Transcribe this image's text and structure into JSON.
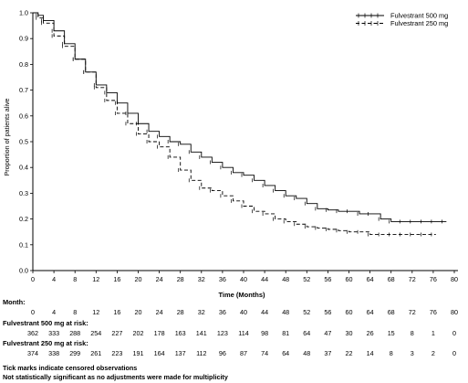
{
  "chart_data": {
    "type": "line",
    "title": "",
    "xlabel": "Time (Months)",
    "ylabel": "Proportion of patients alive",
    "xlim": [
      0,
      80
    ],
    "ylim": [
      0,
      1.0
    ],
    "xticks": [
      "0",
      "4",
      "8",
      "12",
      "16",
      "20",
      "24",
      "28",
      "32",
      "36",
      "40",
      "44",
      "48",
      "52",
      "56",
      "60",
      "64",
      "68",
      "72",
      "76",
      "80"
    ],
    "yticks": [
      "0.0",
      "0.1",
      "0.2",
      "0.3",
      "0.4",
      "0.5",
      "0.6",
      "0.7",
      "0.8",
      "0.9",
      "1.0"
    ],
    "grid": false,
    "legend_position": "top-right",
    "series": [
      {
        "name": "Fulvestrant 500 mg",
        "color": "#000000",
        "dash": "solid",
        "x": [
          0,
          1,
          2,
          4,
          6,
          8,
          10,
          12,
          14,
          16,
          18,
          20,
          22,
          24,
          26,
          28,
          30,
          32,
          34,
          36,
          38,
          40,
          42,
          44,
          46,
          48,
          50,
          52,
          54,
          56,
          58,
          60,
          62,
          64,
          66,
          68,
          70,
          72,
          74,
          76,
          78
        ],
        "y": [
          1.0,
          0.99,
          0.97,
          0.93,
          0.88,
          0.82,
          0.77,
          0.72,
          0.69,
          0.65,
          0.61,
          0.57,
          0.54,
          0.52,
          0.5,
          0.49,
          0.46,
          0.44,
          0.42,
          0.4,
          0.38,
          0.37,
          0.35,
          0.33,
          0.31,
          0.29,
          0.28,
          0.26,
          0.24,
          0.235,
          0.23,
          0.23,
          0.22,
          0.22,
          0.2,
          0.19,
          0.19,
          0.19,
          0.19,
          0.19,
          0.19
        ]
      },
      {
        "name": "Fulvestrant 250 mg",
        "color": "#000000",
        "dash": "dashed",
        "x": [
          0,
          1,
          2,
          4,
          6,
          8,
          10,
          12,
          14,
          16,
          18,
          20,
          22,
          24,
          26,
          28,
          30,
          32,
          34,
          36,
          38,
          40,
          42,
          44,
          46,
          48,
          50,
          52,
          54,
          56,
          58,
          60,
          62,
          64,
          66,
          68,
          70,
          72,
          74,
          76
        ],
        "y": [
          1.0,
          0.98,
          0.96,
          0.91,
          0.87,
          0.82,
          0.77,
          0.71,
          0.66,
          0.61,
          0.57,
          0.53,
          0.5,
          0.48,
          0.44,
          0.39,
          0.35,
          0.32,
          0.31,
          0.29,
          0.27,
          0.25,
          0.23,
          0.22,
          0.2,
          0.19,
          0.18,
          0.17,
          0.165,
          0.16,
          0.155,
          0.15,
          0.15,
          0.14,
          0.14,
          0.14,
          0.14,
          0.14,
          0.14,
          0.14
        ]
      }
    ]
  },
  "risk_table": {
    "month_label": "Month:",
    "months": [
      "0",
      "4",
      "8",
      "12",
      "16",
      "20",
      "24",
      "28",
      "32",
      "36",
      "40",
      "44",
      "48",
      "52",
      "56",
      "60",
      "64",
      "68",
      "72",
      "76",
      "80"
    ],
    "groups": [
      {
        "label": "Fulvestrant 500 mg at risk:",
        "values": [
          "362",
          "333",
          "288",
          "254",
          "227",
          "202",
          "178",
          "163",
          "141",
          "123",
          "114",
          "98",
          "81",
          "64",
          "47",
          "30",
          "26",
          "15",
          "8",
          "1",
          "0"
        ]
      },
      {
        "label": "Fulvestrant 250 mg at risk:",
        "values": [
          "374",
          "338",
          "299",
          "261",
          "223",
          "191",
          "164",
          "137",
          "112",
          "96",
          "87",
          "74",
          "64",
          "48",
          "37",
          "22",
          "14",
          "8",
          "3",
          "2",
          "0"
        ]
      }
    ]
  },
  "footnotes": [
    "Tick marks indicate censored observations",
    "Not statistically significant as no adjustments were made for multiplicity"
  ]
}
